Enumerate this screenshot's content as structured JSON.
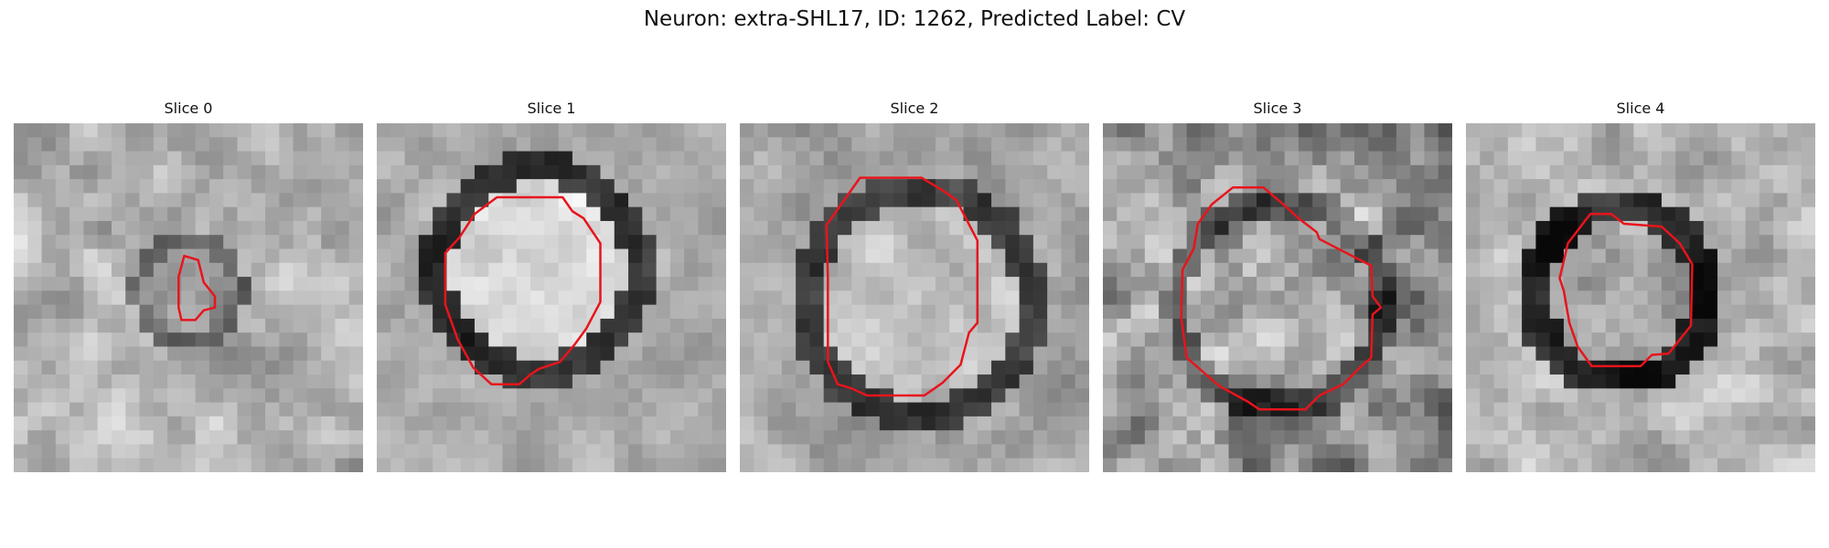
{
  "figure": {
    "title": "Neuron: extra-SHL17, ID: 1262, Predicted Label: CV"
  },
  "colors": {
    "contour": "#e8141c"
  },
  "panels": [
    {
      "label": "Slice 0"
    },
    {
      "label": "Slice 1"
    },
    {
      "label": "Slice 2"
    },
    {
      "label": "Slice 3"
    },
    {
      "label": "Slice 4"
    }
  ]
}
